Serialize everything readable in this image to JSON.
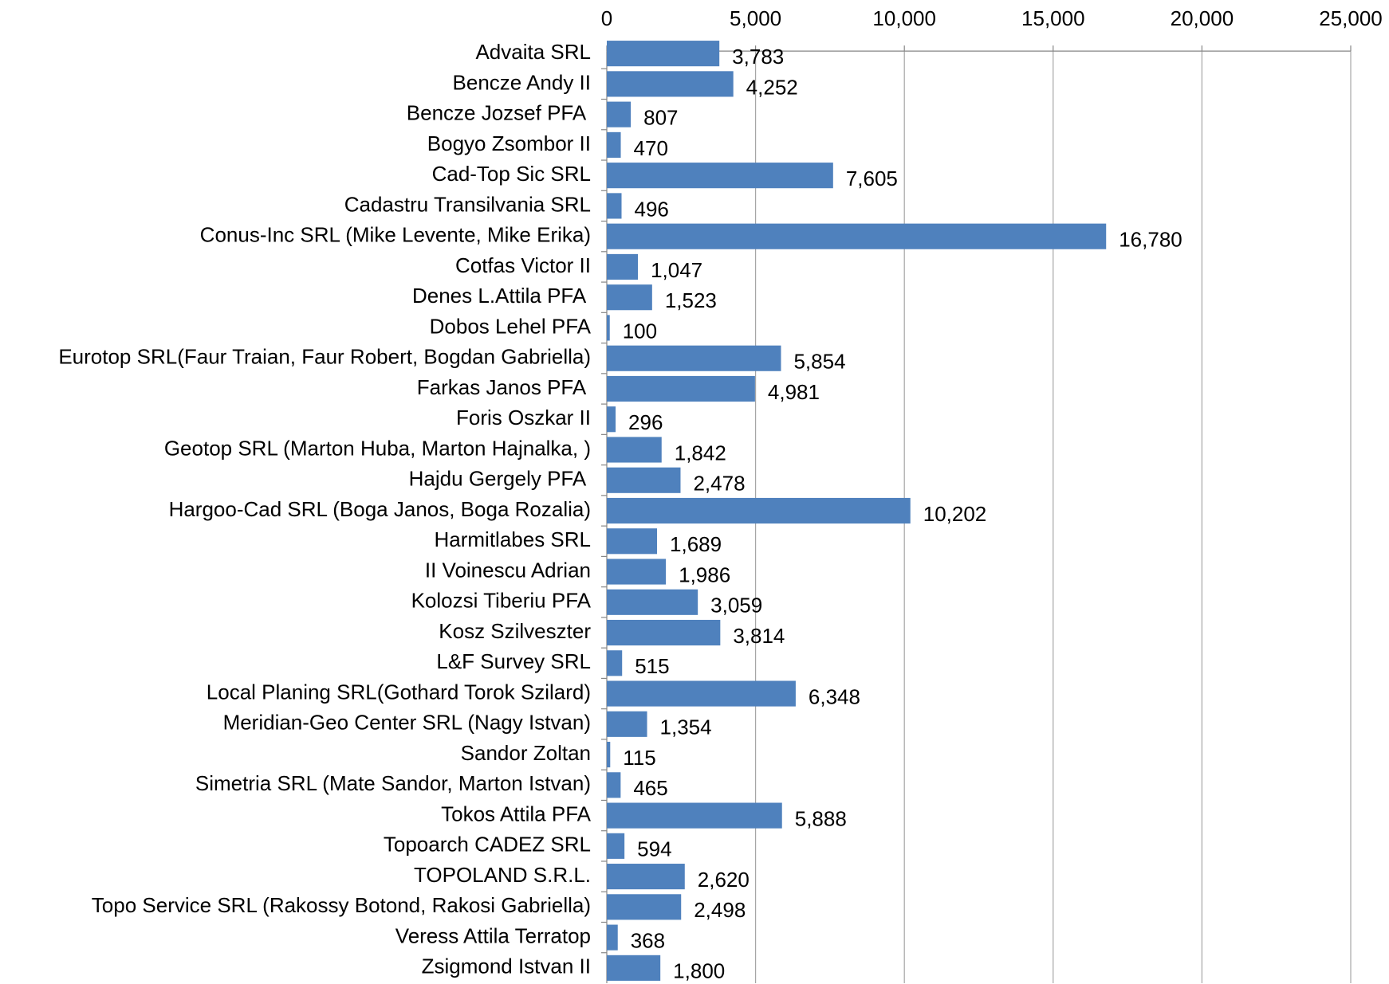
{
  "chart_data": {
    "type": "bar",
    "orientation": "horizontal",
    "color": "#4f81bd",
    "grid": true,
    "categories": [
      "Advaita SRL",
      "Bencze Andy II",
      "Bencze Jozsef PFA ",
      "Bogyo Zsombor II",
      "Cad-Top Sic SRL",
      "Cadastru Transilvania SRL",
      "Conus-Inc SRL (Mike Levente, Mike Erika)",
      "Cotfas Victor II",
      "Denes L.Attila PFA ",
      "Dobos Lehel PFA",
      "Eurotop SRL(Faur Traian, Faur Robert, Bogdan Gabriella)",
      "Farkas Janos PFA ",
      "Foris Oszkar II",
      "Geotop SRL (Marton Huba, Marton Hajnalka, )",
      "Hajdu Gergely PFA ",
      "Hargoo-Cad SRL (Boga Janos, Boga Rozalia)",
      "Harmitlabes SRL",
      "II Voinescu Adrian",
      "Kolozsi Tiberiu PFA",
      "Kosz Szilveszter",
      "L&F Survey SRL",
      "Local Planing SRL(Gothard Torok Szilard)",
      "Meridian-Geo Center SRL (Nagy Istvan)",
      "Sandor Zoltan",
      "Simetria SRL (Mate Sandor, Marton Istvan)",
      "Tokos Attila PFA",
      "Topoarch CADEZ SRL",
      "TOPOLAND S.R.L.",
      "Topo Service SRL (Rakossy Botond, Rakosi Gabriella)",
      "Veress Attila Terratop",
      "Zsigmond Istvan II"
    ],
    "values": [
      3783,
      4252,
      807,
      470,
      7605,
      496,
      16780,
      1047,
      1523,
      100,
      5854,
      4981,
      296,
      1842,
      2478,
      10202,
      1689,
      1986,
      3059,
      3814,
      515,
      6348,
      1354,
      115,
      465,
      5888,
      594,
      2620,
      2498,
      368,
      1800
    ],
    "value_labels": [
      "3,783",
      "4,252",
      "807",
      "470",
      "7,605",
      "496",
      "16,780",
      "1,047",
      "1,523",
      "100",
      "5,854",
      "4,981",
      "296",
      "1,842",
      "2,478",
      "10,202",
      "1,689",
      "1,986",
      "3,059",
      "3,814",
      "515",
      "6,348",
      "1,354",
      "115",
      "465",
      "5,888",
      "594",
      "2,620",
      "2,498",
      "368",
      "1,800"
    ],
    "xlim": [
      0,
      25000
    ],
    "xticks": [
      0,
      {
        "value": 5000,
        "label": "5,000"
      },
      {
        "value": 10000,
        "label": "10,000"
      },
      {
        "value": 15000,
        "label": "15,000"
      },
      {
        "value": 20000,
        "label": "20,000"
      },
      {
        "value": 25000,
        "label": "25,000"
      }
    ]
  }
}
